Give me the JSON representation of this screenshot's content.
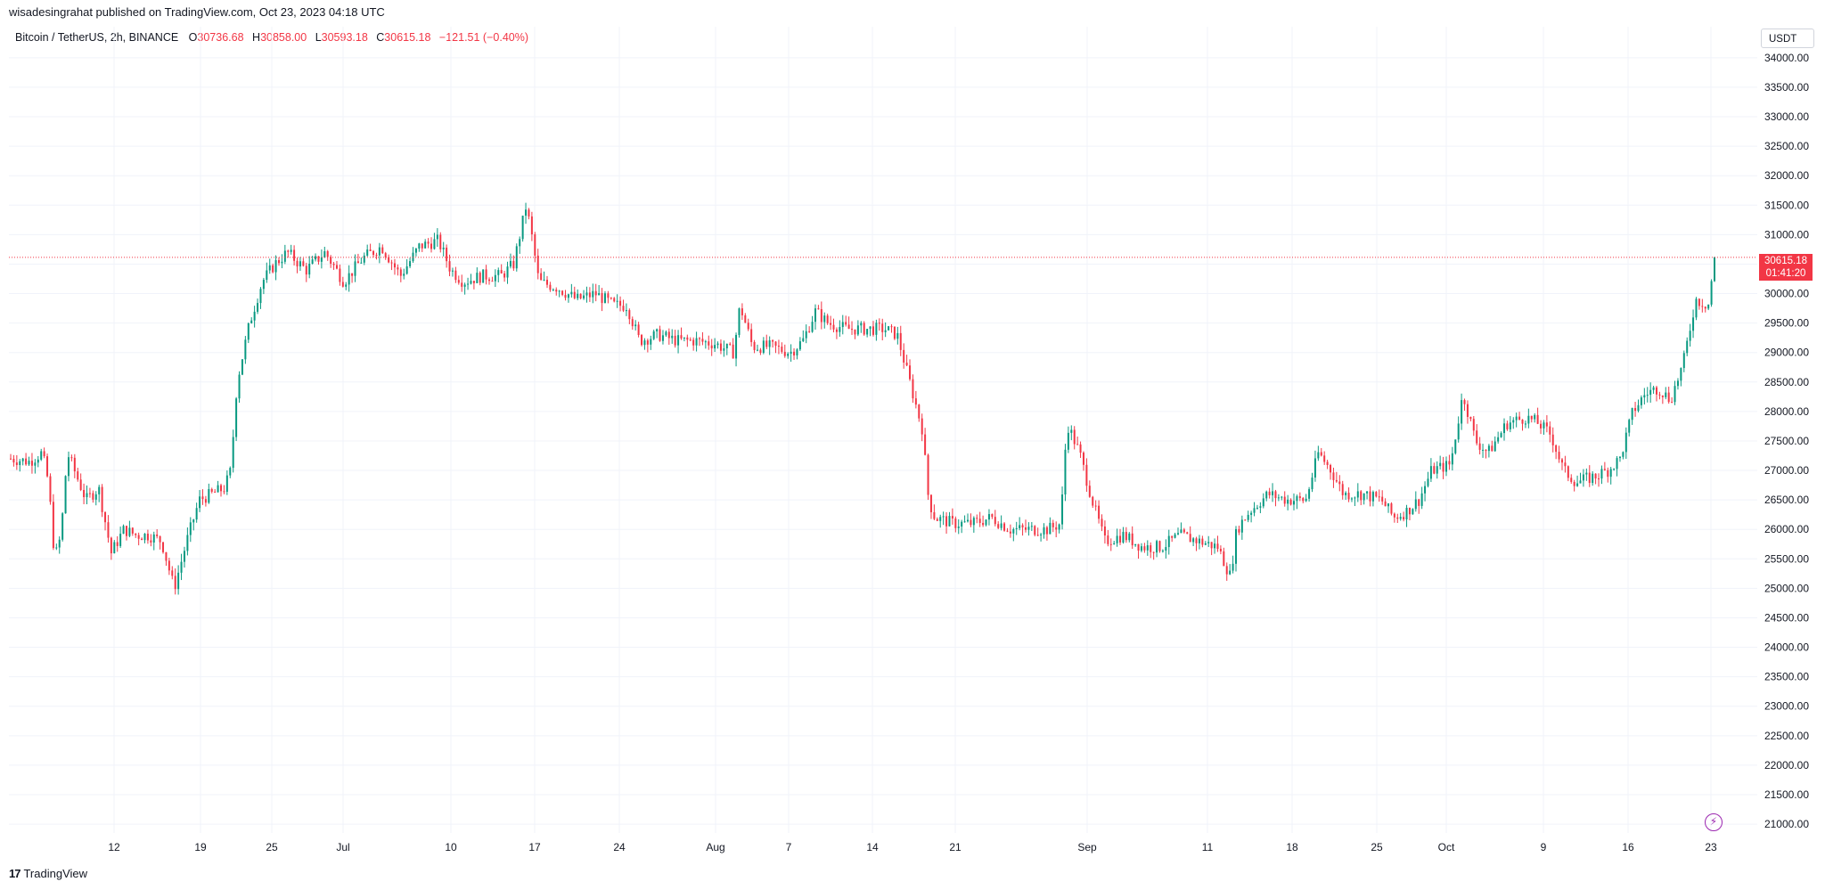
{
  "header": {
    "credit": "wisadesingrahat published on TradingView.com, Oct 23, 2023 04:18 UTC"
  },
  "legend": {
    "symbol": "Bitcoin / TetherUS, 2h, BINANCE",
    "open_label": "O",
    "open": "30736.68",
    "high_label": "H",
    "high": "30858.00",
    "low_label": "L",
    "low": "30593.18",
    "close_label": "C",
    "close": "30615.18",
    "change": "−121.51 (−0.40%)"
  },
  "price_axis": {
    "currency": "USDT",
    "last_price": "30615.18",
    "countdown": "01:41:20"
  },
  "brand": {
    "name": "TradingView"
  },
  "colors": {
    "up": "#089981",
    "down": "#f23645",
    "grid": "#f0f3fa"
  },
  "chart_data": {
    "type": "candlestick",
    "ylim": [
      20850,
      34300
    ],
    "y_ticks": [
      "34000.00",
      "33500.00",
      "33000.00",
      "32500.00",
      "32000.00",
      "31500.00",
      "31000.00",
      "30500.00",
      "30000.00",
      "29500.00",
      "29000.00",
      "28500.00",
      "28000.00",
      "27500.00",
      "27000.00",
      "26500.00",
      "26000.00",
      "25500.00",
      "25000.00",
      "24500.00",
      "24000.00",
      "23500.00",
      "23000.00",
      "22500.00",
      "22000.00",
      "21500.00",
      "21000.00"
    ],
    "x_ticks": [
      "12",
      "19",
      "25",
      "Jul",
      "10",
      "17",
      "24",
      "Aug",
      "7",
      "14",
      "21",
      "Sep",
      "11",
      "18",
      "25",
      "Oct",
      "9",
      "16",
      "23"
    ],
    "last_price": 30615.18,
    "price_path": [
      [
        0,
        27200
      ],
      [
        3,
        27150
      ],
      [
        5,
        27300
      ],
      [
        6,
        26800
      ],
      [
        7,
        25500
      ],
      [
        8,
        25900
      ],
      [
        9,
        27300
      ],
      [
        12,
        26500
      ],
      [
        14,
        26700
      ],
      [
        16,
        25600
      ],
      [
        18,
        26000
      ],
      [
        20,
        25900
      ],
      [
        22,
        25900
      ],
      [
        24,
        25800
      ],
      [
        26,
        25000
      ],
      [
        28,
        25800
      ],
      [
        30,
        26500
      ],
      [
        32,
        26600
      ],
      [
        34,
        26700
      ],
      [
        35,
        27000
      ],
      [
        36,
        28500
      ],
      [
        38,
        29500
      ],
      [
        40,
        30200
      ],
      [
        42,
        30500
      ],
      [
        44,
        30700
      ],
      [
        47,
        30400
      ],
      [
        50,
        30700
      ],
      [
        53,
        30200
      ],
      [
        56,
        30600
      ],
      [
        59,
        30800
      ],
      [
        62,
        30300
      ],
      [
        65,
        30800
      ],
      [
        68,
        30900
      ],
      [
        70,
        30400
      ],
      [
        72,
        30200
      ],
      [
        75,
        30300
      ],
      [
        78,
        30300
      ],
      [
        80,
        30500
      ],
      [
        82,
        31500
      ],
      [
        83,
        30900
      ],
      [
        84,
        30200
      ],
      [
        87,
        30100
      ],
      [
        90,
        29900
      ],
      [
        93,
        30000
      ],
      [
        96,
        29800
      ],
      [
        98,
        29800
      ],
      [
        100,
        29200
      ],
      [
        103,
        29300
      ],
      [
        106,
        29200
      ],
      [
        109,
        29200
      ],
      [
        112,
        29150
      ],
      [
        115,
        29000
      ],
      [
        116,
        29800
      ],
      [
        118,
        29100
      ],
      [
        121,
        29100
      ],
      [
        124,
        29000
      ],
      [
        126,
        29200
      ],
      [
        128,
        29700
      ],
      [
        130,
        29500
      ],
      [
        133,
        29400
      ],
      [
        136,
        29400
      ],
      [
        139,
        29400
      ],
      [
        141,
        29300
      ],
      [
        143,
        28500
      ],
      [
        145,
        27700
      ],
      [
        146,
        26500
      ],
      [
        147,
        26200
      ],
      [
        150,
        26100
      ],
      [
        153,
        26100
      ],
      [
        156,
        26200
      ],
      [
        159,
        26000
      ],
      [
        162,
        26000
      ],
      [
        165,
        26000
      ],
      [
        167,
        26100
      ],
      [
        168,
        27800
      ],
      [
        170,
        27300
      ],
      [
        172,
        26500
      ],
      [
        174,
        25800
      ],
      [
        177,
        25900
      ],
      [
        180,
        25700
      ],
      [
        183,
        25700
      ],
      [
        186,
        25900
      ],
      [
        189,
        25800
      ],
      [
        192,
        25700
      ],
      [
        194,
        25200
      ],
      [
        195,
        26000
      ],
      [
        197,
        26300
      ],
      [
        200,
        26600
      ],
      [
        203,
        26500
      ],
      [
        206,
        26500
      ],
      [
        208,
        27300
      ],
      [
        210,
        27000
      ],
      [
        212,
        26600
      ],
      [
        215,
        26600
      ],
      [
        218,
        26500
      ],
      [
        220,
        26200
      ],
      [
        222,
        26300
      ],
      [
        224,
        26500
      ],
      [
        226,
        27000
      ],
      [
        229,
        27100
      ],
      [
        231,
        28300
      ],
      [
        233,
        27500
      ],
      [
        235,
        27300
      ],
      [
        238,
        27800
      ],
      [
        241,
        27900
      ],
      [
        243,
        27800
      ],
      [
        245,
        27600
      ],
      [
        247,
        27000
      ],
      [
        249,
        26800
      ],
      [
        252,
        26900
      ],
      [
        254,
        27000
      ],
      [
        256,
        27200
      ],
      [
        258,
        28000
      ],
      [
        260,
        28300
      ],
      [
        262,
        28400
      ],
      [
        264,
        28200
      ],
      [
        266,
        28800
      ],
      [
        268,
        29900
      ],
      [
        270,
        29800
      ],
      [
        271,
        30600
      ]
    ]
  }
}
